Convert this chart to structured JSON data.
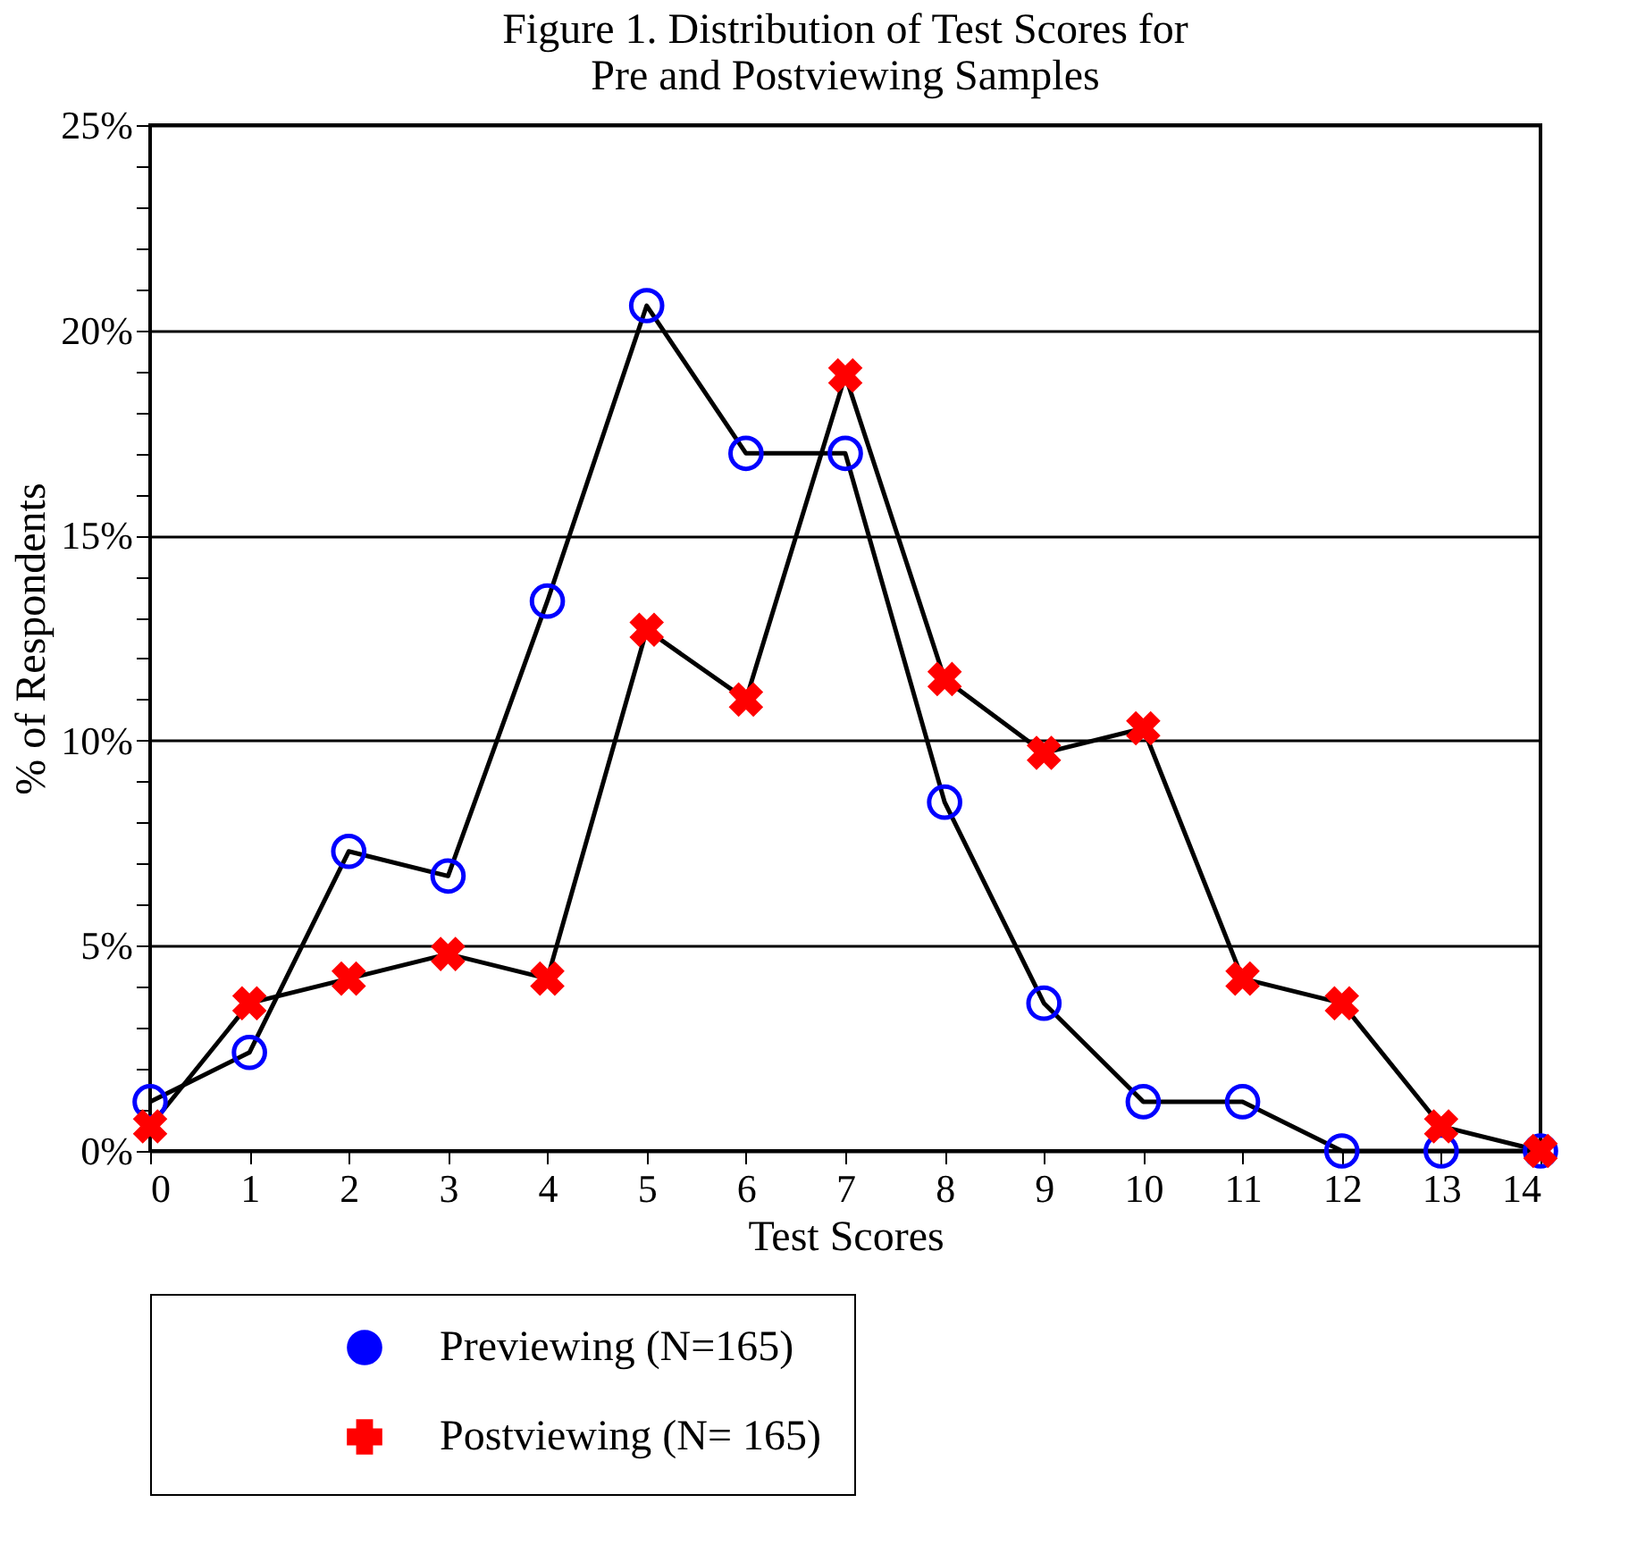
{
  "chart_data": {
    "type": "line",
    "title": "Figure 1.  Distribution of Test Scores for\nPre and Postviewing Samples",
    "xlabel": "Test Scores",
    "ylabel": "% of Respondents",
    "x": [
      0,
      1,
      2,
      3,
      4,
      5,
      6,
      7,
      8,
      9,
      10,
      11,
      12,
      13,
      14
    ],
    "series": [
      {
        "name": "Previewing (N=165)",
        "color": "#0000ff",
        "marker": "circle",
        "values": [
          1.2,
          2.4,
          7.3,
          6.7,
          13.4,
          20.6,
          17.0,
          17.0,
          8.5,
          3.6,
          1.2,
          1.2,
          0,
          0,
          0
        ]
      },
      {
        "name": "Postviewing (N= 165)",
        "color": "#ff0000",
        "marker": "cross",
        "values": [
          0.6,
          3.6,
          4.2,
          4.8,
          4.2,
          12.7,
          11.0,
          18.9,
          11.5,
          9.7,
          10.3,
          4.2,
          3.6,
          0.6,
          0
        ]
      }
    ],
    "xlim": [
      0,
      14
    ],
    "xticks": [
      0,
      1,
      2,
      3,
      4,
      5,
      6,
      7,
      8,
      9,
      10,
      11,
      12,
      13,
      14
    ],
    "ylim": [
      0,
      25
    ],
    "yticks": [
      {
        "value": 0,
        "label": "0%"
      },
      {
        "value": 1,
        "label": null
      },
      {
        "value": 2,
        "label": null
      },
      {
        "value": 3,
        "label": null
      },
      {
        "value": 4,
        "label": null
      },
      {
        "value": 5,
        "label": "5%"
      },
      {
        "value": 6,
        "label": null
      },
      {
        "value": 7,
        "label": null
      },
      {
        "value": 8,
        "label": null
      },
      {
        "value": 9,
        "label": null
      },
      {
        "value": 10,
        "label": "10%"
      },
      {
        "value": 11,
        "label": null
      },
      {
        "value": 12,
        "label": null
      },
      {
        "value": 13,
        "label": null
      },
      {
        "value": 14,
        "label": null
      },
      {
        "value": 15,
        "label": "15%"
      },
      {
        "value": 16,
        "label": null
      },
      {
        "value": 17,
        "label": null
      },
      {
        "value": 18,
        "label": null
      },
      {
        "value": 19,
        "label": null
      },
      {
        "value": 20,
        "label": "20%"
      },
      {
        "value": 21,
        "label": null
      },
      {
        "value": 22,
        "label": null
      },
      {
        "value": 23,
        "label": null
      },
      {
        "value": 24,
        "label": null
      },
      {
        "value": 25,
        "label": "25%"
      }
    ],
    "grid": "y",
    "legend": "bottom",
    "line_style": "solid"
  }
}
